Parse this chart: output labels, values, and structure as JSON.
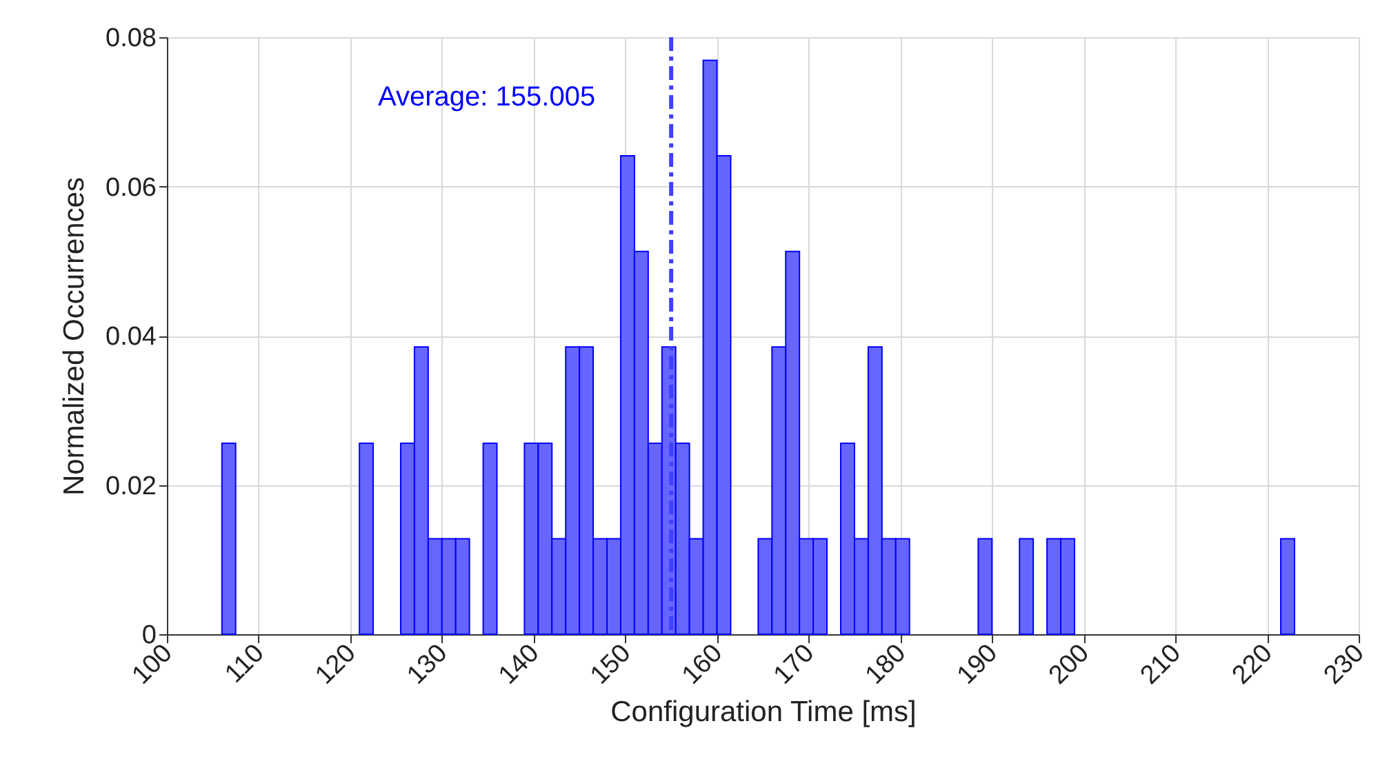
{
  "chart_data": {
    "type": "histogram",
    "bins": [
      106,
      107.5,
      109,
      110.5,
      112,
      113.5,
      115,
      116.5,
      118,
      119.5,
      121,
      122.5,
      124,
      125.5,
      127,
      128.5,
      130,
      131.5,
      133,
      134.5,
      136,
      137.5,
      139,
      140.5,
      142,
      143.5,
      145,
      146.5,
      148,
      149.5,
      151,
      152.5,
      154,
      155.5,
      157,
      158.5,
      160,
      161.5,
      163,
      164.5,
      166,
      167.5,
      169,
      170.5,
      172,
      173.5,
      175,
      176.5,
      178,
      179.5,
      181,
      182.5,
      184,
      185.5,
      187,
      188.5,
      190,
      191.5,
      193,
      194.5,
      196,
      197.5,
      199,
      200.5,
      202,
      203.5,
      205,
      206.5,
      208,
      209.5,
      211,
      212.5,
      214,
      215.5,
      217,
      218.5,
      220,
      221.5,
      223
    ],
    "values": [
      0.0256,
      0,
      0,
      0,
      0,
      0,
      0,
      0,
      0,
      0,
      0.0256,
      0,
      0,
      0.0256,
      0.0385,
      0.0128,
      0.0128,
      0.0128,
      0,
      0.0256,
      0,
      0,
      0.0256,
      0.0256,
      0.0128,
      0.0385,
      0.0385,
      0.0128,
      0.0128,
      0.0641,
      0.0513,
      0.0256,
      0.0385,
      0.0256,
      0.0128,
      0.0769,
      0.0641,
      0,
      0,
      0.0128,
      0.0385,
      0.0513,
      0.0128,
      0.0128,
      0,
      0.0256,
      0.0128,
      0.0385,
      0.0128,
      0.0128,
      0,
      0,
      0,
      0,
      0,
      0.0128,
      0,
      0,
      0.0128,
      0,
      0.0128,
      0.0128,
      0,
      0,
      0,
      0,
      0,
      0,
      0,
      0,
      0,
      0,
      0,
      0,
      0,
      0,
      0,
      0.0128
    ],
    "color": "#6666ff",
    "xlabel": "Configuration Time [ms]",
    "ylabel": "Normalized Occurrences",
    "xlim": [
      100,
      230
    ],
    "xticks": [
      100,
      110,
      120,
      130,
      140,
      150,
      160,
      170,
      180,
      190,
      200,
      210,
      220,
      230
    ],
    "ylim": [
      0,
      0.08
    ],
    "yticks": [
      0,
      0.02,
      0.04,
      0.06,
      0.08
    ],
    "grid": true,
    "ref_lines": [
      {
        "axis": "x",
        "value": 155.005,
        "label": "Average: 155.005",
        "color": "#4040ff",
        "line_style": "dashed"
      }
    ]
  }
}
